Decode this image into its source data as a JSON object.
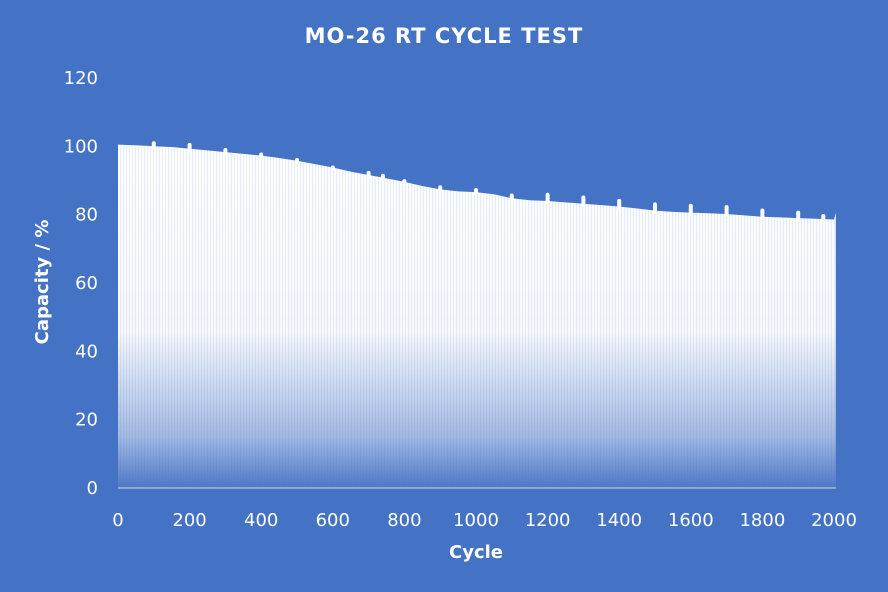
{
  "chart_data": {
    "type": "area",
    "title": "MO-26 RT CYCLE TEST",
    "xlabel": "Cycle",
    "ylabel": "Capacity / %",
    "xlim": [
      0,
      2000
    ],
    "ylim": [
      0,
      120
    ],
    "x_ticks": [
      0,
      200,
      400,
      600,
      800,
      1000,
      1200,
      1400,
      1600,
      1800,
      2000
    ],
    "y_ticks": [
      0,
      20,
      40,
      60,
      80,
      100,
      120
    ],
    "grid": false,
    "legend": "none",
    "fill_color": "#ffffff",
    "background_color": "#4472c4",
    "series": [
      {
        "x": [
          0,
          50,
          100,
          150,
          200,
          250,
          300,
          350,
          400,
          450,
          500,
          550,
          600,
          650,
          700,
          750,
          800,
          850,
          900,
          950,
          1000,
          1050,
          1100,
          1150,
          1200,
          1250,
          1300,
          1350,
          1400,
          1450,
          1500,
          1550,
          1600,
          1650,
          1700,
          1750,
          1800,
          1850,
          1900,
          1950,
          2000,
          2005
        ],
        "values": [
          100.5,
          100.3,
          100.0,
          99.8,
          99.3,
          98.8,
          98.3,
          97.8,
          97.3,
          96.6,
          95.8,
          94.8,
          93.8,
          92.6,
          91.6,
          90.6,
          89.6,
          88.4,
          87.4,
          86.8,
          86.6,
          86.0,
          84.8,
          84.2,
          84.0,
          83.6,
          83.2,
          82.8,
          82.4,
          81.8,
          81.2,
          80.8,
          80.6,
          80.4,
          80.2,
          79.8,
          79.4,
          79.2,
          79.0,
          78.8,
          78.6,
          80.5
        ]
      }
    ],
    "spikes": [
      {
        "x": 100,
        "y": 101.5
      },
      {
        "x": 200,
        "y": 101.0
      },
      {
        "x": 300,
        "y": 99.5
      },
      {
        "x": 400,
        "y": 98.2
      },
      {
        "x": 500,
        "y": 96.6
      },
      {
        "x": 600,
        "y": 94.4
      },
      {
        "x": 700,
        "y": 92.8
      },
      {
        "x": 740,
        "y": 92.0
      },
      {
        "x": 800,
        "y": 90.4
      },
      {
        "x": 900,
        "y": 88.6
      },
      {
        "x": 1000,
        "y": 87.8
      },
      {
        "x": 1100,
        "y": 86.2
      },
      {
        "x": 1200,
        "y": 86.4
      },
      {
        "x": 1300,
        "y": 85.6
      },
      {
        "x": 1400,
        "y": 84.6
      },
      {
        "x": 1500,
        "y": 83.6
      },
      {
        "x": 1600,
        "y": 83.2
      },
      {
        "x": 1700,
        "y": 82.8
      },
      {
        "x": 1800,
        "y": 81.8
      },
      {
        "x": 1900,
        "y": 81.2
      },
      {
        "x": 1970,
        "y": 80.2
      }
    ]
  }
}
